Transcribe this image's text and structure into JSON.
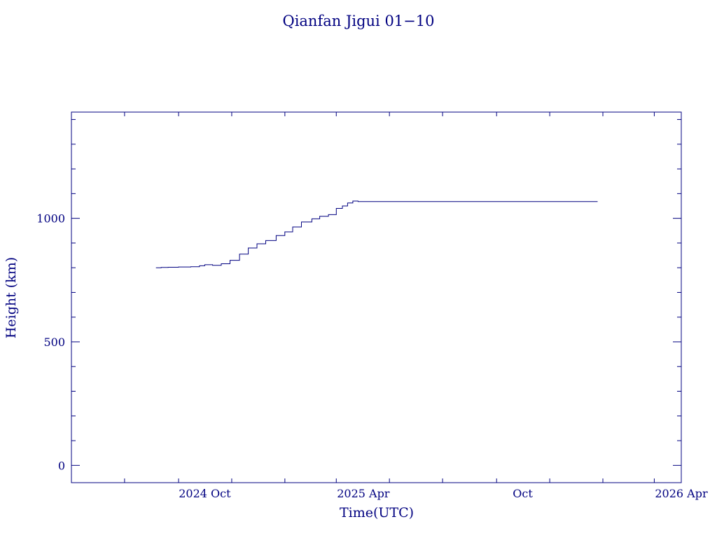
{
  "chart_data": {
    "type": "line",
    "title": "Qianfan Jigui 01−10",
    "xlabel": "Time(UTC)",
    "ylabel": "Height (km)",
    "color": "#000080",
    "xlim": [
      "2024-05-01",
      "2026-04-01"
    ],
    "ylim": [
      -70,
      1430
    ],
    "x_ticks": [
      {
        "date": "2024-10-01",
        "label": "2024 Oct"
      },
      {
        "date": "2025-04-01",
        "label": "2025 Apr"
      },
      {
        "date": "2025-10-01",
        "label": "Oct"
      },
      {
        "date": "2026-04-01",
        "label": "2026 Apr"
      }
    ],
    "y_ticks": [
      0,
      500,
      1000
    ],
    "series": [
      {
        "x": [
          "2024-08-06",
          "2024-08-12",
          "2024-08-20",
          "2024-09-01",
          "2024-09-15",
          "2024-09-25",
          "2024-10-01",
          "2024-10-10",
          "2024-10-20",
          "2024-10-30",
          "2024-11-10",
          "2024-11-20",
          "2024-11-30",
          "2024-12-10",
          "2024-12-22",
          "2025-01-01",
          "2025-01-10",
          "2025-01-20",
          "2025-02-01",
          "2025-02-10",
          "2025-02-20",
          "2025-03-01",
          "2025-03-08",
          "2025-03-14",
          "2025-03-20",
          "2025-03-26",
          "2025-03-30",
          "2025-04-01",
          "2025-05-01",
          "2025-07-01",
          "2025-09-01",
          "2025-11-01",
          "2025-12-01",
          "2025-12-26"
        ],
        "y": [
          800,
          801,
          802,
          803,
          804,
          808,
          812,
          810,
          816,
          830,
          855,
          880,
          897,
          910,
          930,
          945,
          965,
          985,
          998,
          1008,
          1015,
          1040,
          1050,
          1062,
          1070,
          1068,
          1068,
          1068,
          1068,
          1068,
          1068,
          1068,
          1068,
          1068
        ]
      }
    ]
  }
}
